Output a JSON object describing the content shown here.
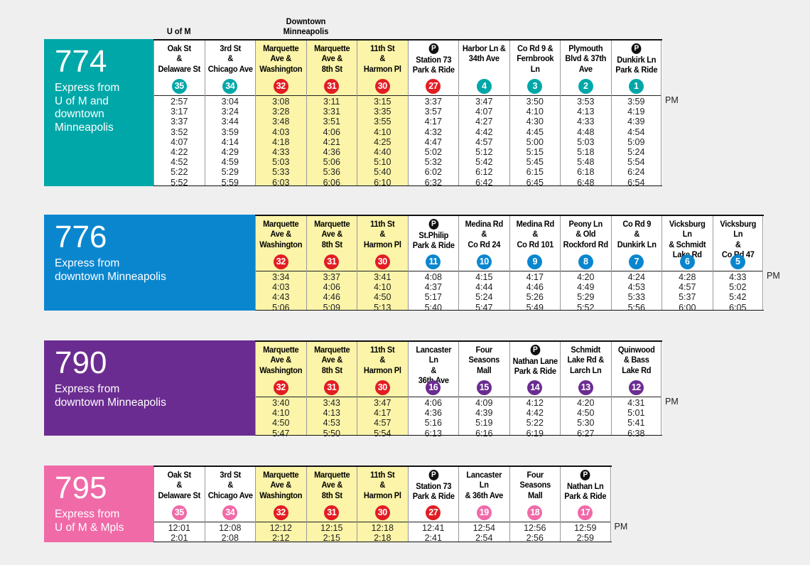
{
  "stop_colors": {
    "red": "#e31c23"
  },
  "pm_label": "PM",
  "routes": [
    {
      "number": "774",
      "color": "#00a7a8",
      "description": "Express from\nU of M and\ndowntown\nMinneapolis",
      "col_offset": 0,
      "top_labels": [
        {
          "text": "U of M",
          "cols": [
            0
          ]
        },
        {
          "text": "Downtown\nMinneapolis",
          "cols": [
            2,
            3
          ]
        }
      ],
      "stops": [
        {
          "name": "Oak St\n&\nDelaware St",
          "id": "35",
          "pnr": false,
          "hl": false,
          "red": false,
          "times": [
            "2:57",
            "3:17",
            "3:37",
            "3:52",
            "4:07",
            "4:22",
            "4:52",
            "5:22",
            "5:52"
          ]
        },
        {
          "name": "3rd St\n&\nChicago Ave",
          "id": "34",
          "pnr": false,
          "hl": false,
          "red": false,
          "times": [
            "3:04",
            "3:24",
            "3:44",
            "3:59",
            "4:14",
            "4:29",
            "4:59",
            "5:29",
            "5:59"
          ]
        },
        {
          "name": "Marquette\nAve &\nWashington",
          "id": "32",
          "pnr": false,
          "hl": true,
          "red": true,
          "times": [
            "3:08",
            "3:28",
            "3:48",
            "4:03",
            "4:18",
            "4:33",
            "5:03",
            "5:33",
            "6:03"
          ]
        },
        {
          "name": "Marquette\nAve &\n8th St",
          "id": "31",
          "pnr": false,
          "hl": true,
          "red": true,
          "times": [
            "3:11",
            "3:31",
            "3:51",
            "4:06",
            "4:21",
            "4:36",
            "5:06",
            "5:36",
            "6:06"
          ]
        },
        {
          "name": "11th St\n&\nHarmon Pl",
          "id": "30",
          "pnr": false,
          "hl": true,
          "red": true,
          "times": [
            "3:15",
            "3:35",
            "3:55",
            "4:10",
            "4:25",
            "4:40",
            "5:10",
            "5:40",
            "6:10"
          ]
        },
        {
          "name": "Station 73\nPark & Ride",
          "id": "27",
          "pnr": true,
          "hl": false,
          "red": true,
          "times": [
            "3:37",
            "3:57",
            "4:17",
            "4:32",
            "4:47",
            "5:02",
            "5:32",
            "6:02",
            "6:32"
          ]
        },
        {
          "name": "Harbor Ln &\n34th Ave",
          "id": "4",
          "pnr": false,
          "hl": false,
          "red": false,
          "times": [
            "3:47",
            "4:07",
            "4:27",
            "4:42",
            "4:57",
            "5:12",
            "5:42",
            "6:12",
            "6:42"
          ]
        },
        {
          "name": "Co Rd 9 &\nFernbrook\nLn",
          "id": "3",
          "pnr": false,
          "hl": false,
          "red": false,
          "times": [
            "3:50",
            "4:10",
            "4:30",
            "4:45",
            "5:00",
            "5:15",
            "5:45",
            "6:15",
            "6:45"
          ]
        },
        {
          "name": "Plymouth\nBlvd & 37th\nAve",
          "id": "2",
          "pnr": false,
          "hl": false,
          "red": false,
          "times": [
            "3:53",
            "4:13",
            "4:33",
            "4:48",
            "5:03",
            "5:18",
            "5:48",
            "6:18",
            "6:48"
          ]
        },
        {
          "name": "Dunkirk Ln\nPark & Ride",
          "id": "1",
          "pnr": true,
          "hl": false,
          "red": false,
          "times": [
            "3:59",
            "4:19",
            "4:39",
            "4:54",
            "5:09",
            "5:24",
            "5:54",
            "6:24",
            "6:54"
          ]
        }
      ]
    },
    {
      "number": "776",
      "color": "#0a86cf",
      "description": "Express from\ndowntown Minneapolis",
      "col_offset": 2,
      "top_labels": [],
      "stops": [
        {
          "name": "Marquette\nAve &\nWashington",
          "id": "32",
          "pnr": false,
          "hl": true,
          "red": true,
          "times": [
            "3:34",
            "4:03",
            "4:43",
            "5:06"
          ]
        },
        {
          "name": "Marquette\nAve &\n8th St",
          "id": "31",
          "pnr": false,
          "hl": true,
          "red": true,
          "times": [
            "3:37",
            "4:06",
            "4:46",
            "5:09"
          ]
        },
        {
          "name": "11th St\n&\nHarmon Pl",
          "id": "30",
          "pnr": false,
          "hl": true,
          "red": true,
          "times": [
            "3:41",
            "4:10",
            "4:50",
            "5:13"
          ]
        },
        {
          "name": "St.Philip\nPark & Ride",
          "id": "11",
          "pnr": true,
          "hl": false,
          "red": false,
          "times": [
            "4:08",
            "4:37",
            "5:17",
            "5:40"
          ]
        },
        {
          "name": "Medina Rd\n&\nCo Rd 24",
          "id": "10",
          "pnr": false,
          "hl": false,
          "red": false,
          "times": [
            "4:15",
            "4:44",
            "5:24",
            "5:47"
          ]
        },
        {
          "name": "Medina Rd\n&\nCo Rd 101",
          "id": "9",
          "pnr": false,
          "hl": false,
          "red": false,
          "times": [
            "4:17",
            "4:46",
            "5:26",
            "5:49"
          ]
        },
        {
          "name": "Peony Ln\n& Old\nRockford Rd",
          "id": "8",
          "pnr": false,
          "hl": false,
          "red": false,
          "times": [
            "4:20",
            "4:49",
            "5:29",
            "5:52"
          ]
        },
        {
          "name": "Co Rd 9\n&\nDunkirk Ln",
          "id": "7",
          "pnr": false,
          "hl": false,
          "red": false,
          "times": [
            "4:24",
            "4:53",
            "5:33",
            "5:56"
          ]
        },
        {
          "name": "Vicksburg Ln\n& Schmidt\nLake Rd",
          "id": "6",
          "pnr": false,
          "hl": false,
          "red": false,
          "times": [
            "4:28",
            "4:57",
            "5:37",
            "6:00"
          ]
        },
        {
          "name": "Vicksburg Ln\n&\nCo Rd 47",
          "id": "5",
          "pnr": false,
          "hl": false,
          "red": false,
          "times": [
            "4:33",
            "5:02",
            "5:42",
            "6:05"
          ]
        }
      ]
    },
    {
      "number": "790",
      "color": "#6b2c91",
      "description": "Express from\ndowntown Minneapolis",
      "col_offset": 2,
      "top_labels": [],
      "stops": [
        {
          "name": "Marquette\nAve &\nWashington",
          "id": "32",
          "pnr": false,
          "hl": true,
          "red": true,
          "times": [
            "3:40",
            "4:10",
            "4:50",
            "5:47"
          ]
        },
        {
          "name": "Marquette\nAve &\n8th St",
          "id": "31",
          "pnr": false,
          "hl": true,
          "red": true,
          "times": [
            "3:43",
            "4:13",
            "4:53",
            "5:50"
          ]
        },
        {
          "name": "11th St\n&\nHarmon Pl",
          "id": "30",
          "pnr": false,
          "hl": true,
          "red": true,
          "times": [
            "3:47",
            "4:17",
            "4:57",
            "5:54"
          ]
        },
        {
          "name": "Lancaster Ln\n&\n36th Ave",
          "id": "16",
          "pnr": false,
          "hl": false,
          "red": false,
          "times": [
            "4:06",
            "4:36",
            "5:16",
            "6:13"
          ]
        },
        {
          "name": "Four\nSeasons\nMall",
          "id": "15",
          "pnr": false,
          "hl": false,
          "red": false,
          "times": [
            "4:09",
            "4:39",
            "5:19",
            "6:16"
          ]
        },
        {
          "name": "Nathan Lane\nPark & Ride",
          "id": "14",
          "pnr": true,
          "hl": false,
          "red": false,
          "times": [
            "4:12",
            "4:42",
            "5:22",
            "6:19"
          ]
        },
        {
          "name": "Schmidt\nLake Rd &\nLarch Ln",
          "id": "13",
          "pnr": false,
          "hl": false,
          "red": false,
          "times": [
            "4:20",
            "4:50",
            "5:30",
            "6:27"
          ]
        },
        {
          "name": "Quinwood\n& Bass\nLake Rd",
          "id": "12",
          "pnr": false,
          "hl": false,
          "red": false,
          "times": [
            "4:31",
            "5:01",
            "5:41",
            "6:38"
          ]
        }
      ]
    },
    {
      "number": "795",
      "color": "#f06aa8",
      "description": "Express from\nU of M & Mpls",
      "col_offset": 0,
      "top_labels": [],
      "stops": [
        {
          "name": "Oak St\n&\nDelaware St",
          "id": "35",
          "pnr": false,
          "hl": false,
          "red": false,
          "times": [
            "12:01",
            "2:01"
          ]
        },
        {
          "name": "3rd St\n&\nChicago Ave",
          "id": "34",
          "pnr": false,
          "hl": false,
          "red": false,
          "times": [
            "12:08",
            "2:08"
          ]
        },
        {
          "name": "Marquette\nAve &\nWashington",
          "id": "32",
          "pnr": false,
          "hl": true,
          "red": true,
          "times": [
            "12:12",
            "2:12"
          ]
        },
        {
          "name": "Marquette\nAve &\n8th St",
          "id": "31",
          "pnr": false,
          "hl": true,
          "red": true,
          "times": [
            "12:15",
            "2:15"
          ]
        },
        {
          "name": "11th St\n&\nHarmon Pl",
          "id": "30",
          "pnr": false,
          "hl": true,
          "red": true,
          "times": [
            "12:18",
            "2:18"
          ]
        },
        {
          "name": "Station 73\nPark & Ride",
          "id": "27",
          "pnr": true,
          "hl": false,
          "red": true,
          "times": [
            "12:41",
            "2:41"
          ]
        },
        {
          "name": "Lancaster Ln\n& 36th Ave",
          "id": "19",
          "pnr": false,
          "hl": false,
          "red": false,
          "times": [
            "12:54",
            "2:54"
          ]
        },
        {
          "name": "Four\nSeasons\nMall",
          "id": "18",
          "pnr": false,
          "hl": false,
          "red": false,
          "times": [
            "12:56",
            "2:56"
          ]
        },
        {
          "name": "Nathan Ln\nPark & Ride",
          "id": "17",
          "pnr": true,
          "hl": false,
          "red": false,
          "times": [
            "12:59",
            "2:59"
          ]
        }
      ]
    }
  ]
}
